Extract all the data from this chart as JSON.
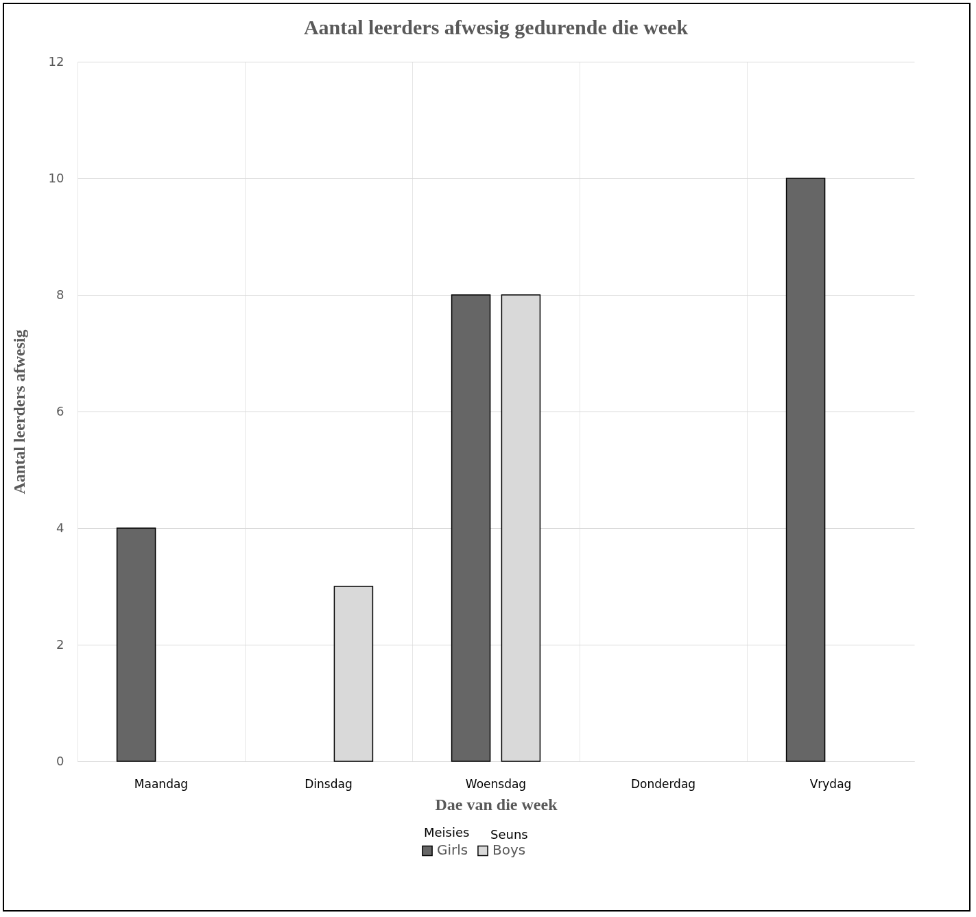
{
  "chart_data": {
    "type": "bar",
    "title": "Aantal leerders afwesig gedurende die week",
    "xlabel": "Dae van die week",
    "ylabel": "Aantal leerders afwesig",
    "categories": [
      "Maandag",
      "Dinsdag",
      "Woensdag",
      "Donderdag",
      "Vrydag"
    ],
    "series": [
      {
        "name": "Girls",
        "color": "#666666",
        "values": [
          4,
          null,
          8,
          null,
          10
        ]
      },
      {
        "name": "Boys",
        "color": "#d9d9d9",
        "values": [
          null,
          3,
          8,
          null,
          null
        ]
      }
    ],
    "ylim": [
      0,
      12
    ],
    "yticks": [
      0,
      2,
      4,
      6,
      8,
      10,
      12
    ],
    "grid": true,
    "legend": "bottom",
    "annotations": [
      "Meisies",
      "Seuns"
    ]
  }
}
